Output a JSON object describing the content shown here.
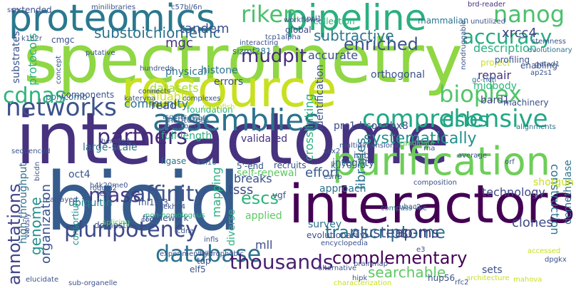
{
  "words": [
    {
      "text": "spectrometry",
      "color": "#8fd744"
    },
    {
      "text": "interactome",
      "color": "#46327e"
    },
    {
      "text": "resource",
      "color": "#c8e020"
    },
    {
      "text": "bioid",
      "color": "#365c8d"
    },
    {
      "text": "interactors",
      "color": "#440154"
    },
    {
      "text": "proteomics",
      "color": "#2a788e"
    },
    {
      "text": "pipeline",
      "color": "#2ab07f"
    },
    {
      "text": "purification",
      "color": "#6ece58"
    },
    {
      "text": "assemblies",
      "color": "#2c728e"
    },
    {
      "text": "comprehensive",
      "color": "#22a884"
    },
    {
      "text": "riken",
      "color": "#4ac16d"
    },
    {
      "text": "nanog",
      "color": "#4ac16d"
    },
    {
      "text": "networks",
      "color": "#3b528b"
    },
    {
      "text": "annotations",
      "color": "#414487"
    },
    {
      "text": "cdnas",
      "color": "#2fb47c"
    },
    {
      "text": "bioplex",
      "color": "#52c569"
    },
    {
      "text": "dsbs",
      "color": "#20a386"
    },
    {
      "text": "accuracy",
      "color": "#25ab82"
    },
    {
      "text": "mudpit",
      "color": "#472d7b"
    },
    {
      "text": "enriched",
      "color": "#3b528b"
    },
    {
      "text": "partners",
      "color": "#482878"
    },
    {
      "text": "affinity",
      "color": "#3b528b"
    },
    {
      "text": "mass",
      "color": "#443a83"
    },
    {
      "text": "database",
      "color": "#2c728e"
    },
    {
      "text": "pluripotency",
      "color": "#3e4a89"
    },
    {
      "text": "thousands",
      "color": "#481f70"
    },
    {
      "text": "systematically",
      "color": "#21918c"
    },
    {
      "text": "subtractive",
      "color": "#2a788e"
    },
    {
      "text": "escs",
      "color": "#2fb47c"
    },
    {
      "text": "transcriptome",
      "color": "#2c728e"
    },
    {
      "text": "complementary",
      "color": "#440154"
    },
    {
      "text": "searchable",
      "color": "#5ec962"
    },
    {
      "text": "ap-ms",
      "color": "#46327e"
    },
    {
      "text": "clusters",
      "color": "#3b528b"
    },
    {
      "text": "substoichiometric",
      "color": "#2c728e"
    },
    {
      "text": "tandem",
      "color": "#3b528b"
    },
    {
      "text": "xrcc4",
      "color": "#414487"
    },
    {
      "text": "mgc",
      "color": "#46327e"
    },
    {
      "text": "repair",
      "color": "#46327e"
    },
    {
      "text": "midbody",
      "color": "#2fb47c"
    },
    {
      "text": "description",
      "color": "#2ab07f"
    },
    {
      "text": "accurate",
      "color": "#3b528b"
    },
    {
      "text": "orthogonal",
      "color": "#3b528b"
    },
    {
      "text": "datasets",
      "color": "#a2da37"
    },
    {
      "text": "valuable",
      "color": "#c8e020"
    },
    {
      "text": "community",
      "color": "#2c728e"
    },
    {
      "text": "read",
      "color": "#3e4a89"
    },
    {
      "text": "bard1",
      "color": "#414487"
    },
    {
      "text": "construction",
      "color": "#2c728e"
    },
    {
      "text": "full-length",
      "color": "#2ab07f"
    },
    {
      "text": "crosslinking",
      "color": "#28ae80"
    },
    {
      "text": "prc1-bcor-cbx8",
      "color": "#3e4a89"
    },
    {
      "text": "large-scale",
      "color": "#2c728e"
    },
    {
      "text": "genome",
      "color": "#21918c"
    },
    {
      "text": "effort",
      "color": "#365c8d"
    },
    {
      "text": "breaks",
      "color": "#3b528b"
    },
    {
      "text": "tsss",
      "color": "#3e4a89"
    },
    {
      "text": "applied",
      "color": "#5ec962"
    },
    {
      "text": "ubiquitin",
      "color": "#26828e"
    },
    {
      "text": "organization",
      "color": "#3b528b"
    },
    {
      "text": "oct4",
      "color": "#3b528b"
    },
    {
      "text": "demethylase",
      "color": "#2c728e"
    },
    {
      "text": "mll",
      "color": "#3e4a89"
    },
    {
      "text": "clones",
      "color": "#3e4a89"
    },
    {
      "text": "approach",
      "color": "#2c728e"
    },
    {
      "text": "technology",
      "color": "#3e4a89"
    },
    {
      "text": "mapping",
      "color": "#2ab07f"
    },
    {
      "text": "protocols",
      "color": "#2ab07f"
    },
    {
      "text": "polycomb",
      "color": "#2c728e"
    },
    {
      "text": "physical",
      "color": "#2c728e"
    },
    {
      "text": "histone",
      "color": "#2c728e"
    },
    {
      "text": "errors",
      "color": "#3b528b"
    },
    {
      "text": "identification",
      "color": "#3b528b"
    },
    {
      "text": "integrity",
      "color": "#3b528b"
    },
    {
      "text": "libraries",
      "color": "#2c728e"
    },
    {
      "text": "self-renewal",
      "color": "#5ec962"
    },
    {
      "text": "validated",
      "color": "#46327e"
    },
    {
      "text": "survey",
      "color": "#2c728e"
    },
    {
      "text": "diverse",
      "color": "#2ab07f"
    },
    {
      "text": "framework",
      "color": "#3b528b"
    },
    {
      "text": "domestic",
      "color": "#3b528b"
    },
    {
      "text": "consortium",
      "color": "#21918c"
    },
    {
      "text": "high-throughput",
      "color": "#2c728e"
    },
    {
      "text": "shotgun",
      "color": "#c8e020"
    },
    {
      "text": "institutes",
      "color": "#3b528b"
    },
    {
      "text": "foundation",
      "color": "#2ab07f"
    },
    {
      "text": "components",
      "color": "#3b528b"
    },
    {
      "text": "substrates",
      "color": "#3b528b"
    },
    {
      "text": "ligase",
      "color": "#2c728e"
    },
    {
      "text": "mammalian",
      "color": "#2c728e"
    },
    {
      "text": "collection",
      "color": "#2ab07f"
    },
    {
      "text": "minilibraries",
      "color": "#3b528b"
    },
    {
      "text": "extended",
      "color": "#3b528b"
    },
    {
      "text": "c57bl/6n",
      "color": "#3b528b"
    },
    {
      "text": "brd-reader",
      "color": "#46327e"
    },
    {
      "text": "evolutionary",
      "color": "#2c728e"
    },
    {
      "text": "stemness",
      "color": "#3b528b"
    },
    {
      "text": "project",
      "color": "#c8e020"
    },
    {
      "text": "profiling",
      "color": "#3b528b"
    },
    {
      "text": "enabling",
      "color": "#3b528b"
    },
    {
      "text": "machinery",
      "color": "#3b528b"
    },
    {
      "text": "alignments",
      "color": "#2c728e"
    },
    {
      "text": "cmgc",
      "color": "#3b528b"
    },
    {
      "text": "global",
      "color": "#3e4a89"
    },
    {
      "text": "sizmf281",
      "color": "#2c728e"
    },
    {
      "text": "tcp1alpha",
      "color": "#3b528b"
    },
    {
      "text": "interacting",
      "color": "#3b528b"
    },
    {
      "text": "putative",
      "color": "#3b528b"
    },
    {
      "text": "hundreds",
      "color": "#3b528b"
    },
    {
      "text": "ontology",
      "color": "#3b528b"
    },
    {
      "text": "circagf1",
      "color": "#2c728e"
    },
    {
      "text": "rhemac2",
      "color": "#3b528b"
    },
    {
      "text": "tsgehs",
      "color": "#2c728e"
    },
    {
      "text": "5'-end",
      "color": "#3b528b"
    },
    {
      "text": "recruits",
      "color": "#3b528b"
    },
    {
      "text": "sox2",
      "color": "#3b528b"
    },
    {
      "text": "rna",
      "color": "#3b528b"
    },
    {
      "text": "average",
      "color": "#3b528b"
    },
    {
      "text": "ku70",
      "color": "#2c728e"
    },
    {
      "text": "esrrb",
      "color": "#3b528b"
    },
    {
      "text": "klh16",
      "color": "#2c728e"
    },
    {
      "text": "infls",
      "color": "#3b528b"
    },
    {
      "text": "h4k20me0",
      "color": "#3b528b"
    },
    {
      "text": "roquin2",
      "color": "#3b528b"
    },
    {
      "text": "tet1",
      "color": "#3b528b"
    },
    {
      "text": "ml12/3",
      "color": "#3b528b"
    },
    {
      "text": "elf5",
      "color": "#3b528b"
    },
    {
      "text": "tap",
      "color": "#3b528b"
    },
    {
      "text": "e3",
      "color": "#3b528b"
    },
    {
      "text": "hup56",
      "color": "#3b528b"
    },
    {
      "text": "sets",
      "color": "#3b528b"
    },
    {
      "text": "splicing",
      "color": "#5ec962"
    },
    {
      "text": "elucidate",
      "color": "#3b528b"
    },
    {
      "text": "sub-organelle",
      "color": "#3b528b"
    },
    {
      "text": "evolutionarily",
      "color": "#3b528b"
    },
    {
      "text": "multidimensional",
      "color": "#3b528b"
    },
    {
      "text": "inib",
      "color": "#3b528b"
    },
    {
      "text": "gc-rich",
      "color": "#2c728e"
    },
    {
      "text": "ap2s1",
      "color": "#3b528b"
    },
    {
      "text": "pcl1",
      "color": "#3b528b"
    },
    {
      "text": "orf",
      "color": "#3b528b"
    },
    {
      "text": "compass-like",
      "color": "#2c728e"
    },
    {
      "text": "ubac2",
      "color": "#3b528b"
    },
    {
      "text": "plekhd4",
      "color": "#3b528b"
    },
    {
      "text": "rearrayed",
      "color": "#3b528b"
    },
    {
      "text": "bicdn",
      "color": "#3b528b"
    },
    {
      "text": "complexes",
      "color": "#3b528b"
    },
    {
      "text": "concept",
      "color": "#3b528b"
    },
    {
      "text": "encyclopedia",
      "color": "#3b528b"
    },
    {
      "text": "cdna",
      "color": "#3b528b"
    },
    {
      "text": "sequenced",
      "color": "#3b528b"
    },
    {
      "text": "core",
      "color": "#3b528b"
    },
    {
      "text": "composition",
      "color": "#3b528b"
    },
    {
      "text": "vgf",
      "color": "#3b528b"
    },
    {
      "text": "candidate",
      "color": "#5ec962"
    },
    {
      "text": "accessed",
      "color": "#c8e020"
    },
    {
      "text": "architecture",
      "color": "#c8e020"
    },
    {
      "text": "mahova",
      "color": "#c8e020"
    },
    {
      "text": "characterization",
      "color": "#c8e020"
    },
    {
      "text": "alternative",
      "color": "#3b528b"
    },
    {
      "text": "viously",
      "color": "#3b528b"
    },
    {
      "text": "nondruggable",
      "color": "#3b528b"
    },
    {
      "text": "non-homologous",
      "color": "#2ab07f"
    },
    {
      "text": "brainmap",
      "color": "#3b528b"
    },
    {
      "text": "unutilized",
      "color": "#3b528b"
    },
    {
      "text": "experimentally",
      "color": "#3b528b"
    },
    {
      "text": "workflows",
      "color": "#3b528b"
    },
    {
      "text": "hydrophobic",
      "color": "#3b528b"
    },
    {
      "text": "k182r",
      "color": "#3b528b"
    },
    {
      "text": "phylofish",
      "color": "#c8e020"
    },
    {
      "text": "kateryna",
      "color": "#3b528b"
    },
    {
      "text": "connects",
      "color": "#3b528b"
    },
    {
      "text": "gatad1",
      "color": "#3b528b"
    },
    {
      "text": "dpgkx",
      "color": "#3b528b"
    },
    {
      "text": "rfc2",
      "color": "#3b528b"
    },
    {
      "text": "hipk",
      "color": "#3b528b"
    },
    {
      "text": "ssa",
      "color": "#3b528b"
    }
  ]
}
